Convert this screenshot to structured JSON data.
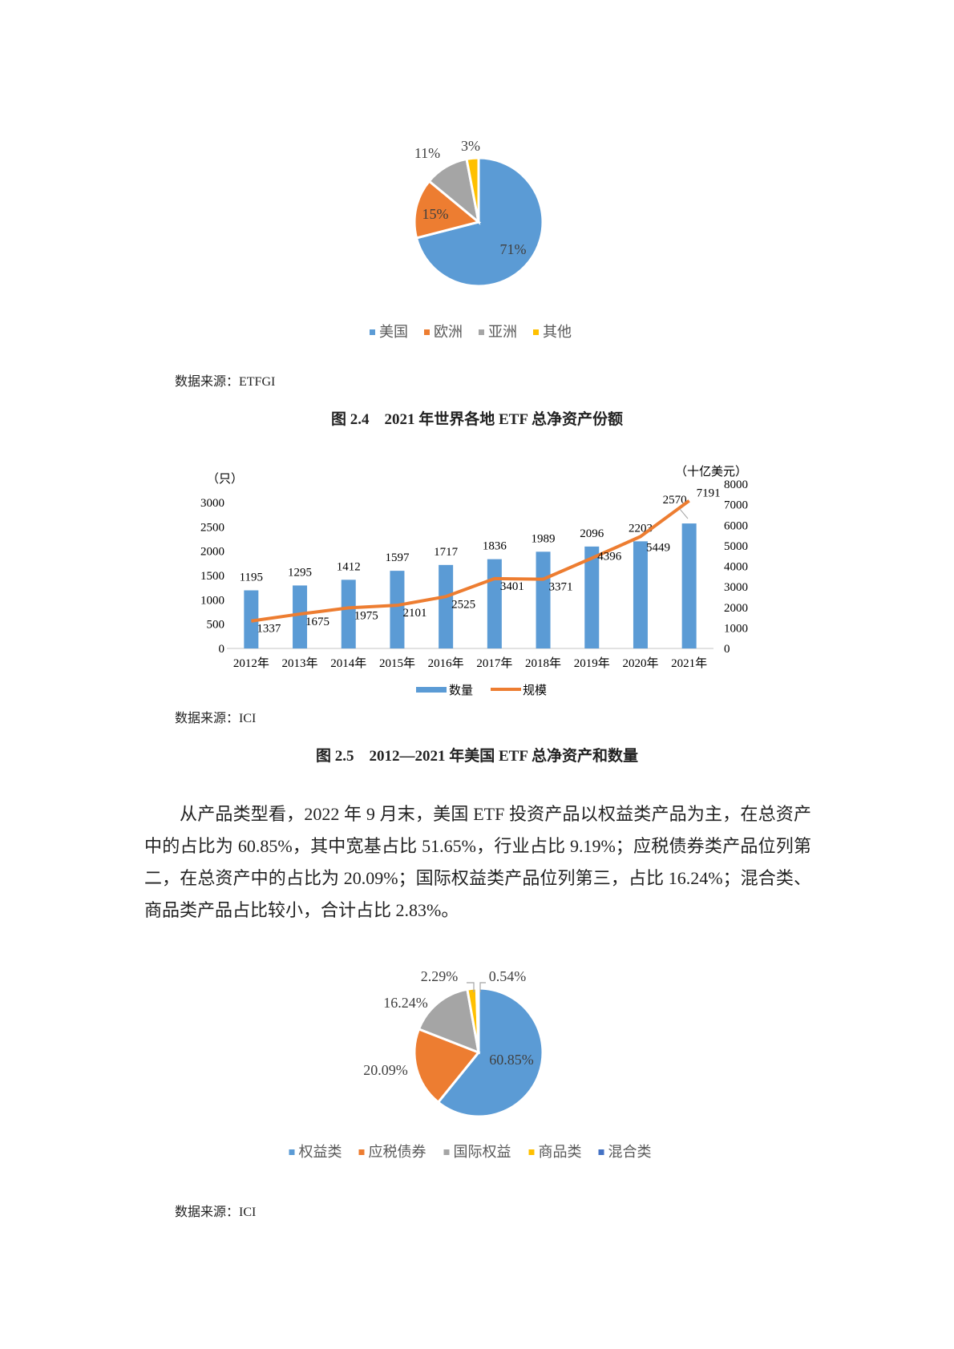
{
  "chart_data": [
    {
      "type": "pie",
      "labels": [
        "美国",
        "欧洲",
        "亚洲",
        "其他"
      ],
      "values": [
        71,
        15,
        11,
        3
      ],
      "value_labels": [
        "71%",
        "15%",
        "11%",
        "3%"
      ],
      "colors": [
        "#5b9bd5",
        "#ed7d31",
        "#a5a5a5",
        "#ffc000"
      ],
      "legend": "bottom"
    },
    {
      "type": "bar",
      "categories": [
        "2012年",
        "2013年",
        "2014年",
        "2015年",
        "2016年",
        "2017年",
        "2018年",
        "2019年",
        "2020年",
        "2021年"
      ],
      "series": [
        {
          "name": "数量",
          "type": "bar",
          "axis": "left",
          "color": "#5b9bd5",
          "values": [
            1195,
            1295,
            1412,
            1597,
            1717,
            1836,
            1989,
            2096,
            2203,
            2570
          ]
        },
        {
          "name": "规模",
          "type": "line",
          "axis": "right",
          "color": "#ed7d31",
          "values": [
            1337,
            1675,
            1975,
            2101,
            2525,
            3401,
            3371,
            4396,
            5449,
            7191
          ]
        }
      ],
      "ylabel": "（只）",
      "y2label": "（十亿美元）",
      "ylim": [
        0,
        3000
      ],
      "y_ticks": [
        0,
        500,
        1000,
        1500,
        2000,
        2500,
        3000
      ],
      "y2lim": [
        0,
        8000
      ],
      "y2_ticks": [
        0,
        1000,
        2000,
        3000,
        4000,
        5000,
        6000,
        7000,
        8000
      ],
      "grid": false,
      "legend": "bottom"
    },
    {
      "type": "pie",
      "labels": [
        "权益类",
        "应税债券",
        "国际权益",
        "商品类",
        "混合类"
      ],
      "values": [
        60.85,
        20.09,
        16.24,
        2.29,
        0.54
      ],
      "value_labels": [
        "60.85%",
        "20.09%",
        "16.24%",
        "2.29%",
        "0.54%"
      ],
      "colors": [
        "#5b9bd5",
        "#ed7d31",
        "#a5a5a5",
        "#ffc000",
        "#4472c4"
      ],
      "legend": "bottom"
    }
  ],
  "fig24": {
    "source": "数据来源：ETFGI",
    "caption": "图 2.4　2021 年世界各地 ETF 总净资产份额"
  },
  "fig25": {
    "source": "数据来源：ICI",
    "caption": "图 2.5　2012—2021 年美国 ETF 总净资产和数量"
  },
  "paragraph": "从产品类型看，2022 年 9 月末，美国 ETF 投资产品以权益类产品为主，在总资产中的占比为 60.85%，其中宽基占比 51.65%，行业占比 9.19%；应税债券类产品位列第二，在总资产中的占比为 20.09%；国际权益类产品位列第三，占比 16.24%；混合类、商品类产品占比较小，合计占比 2.83%。",
  "fig26": {
    "source": "数据来源：ICI"
  }
}
